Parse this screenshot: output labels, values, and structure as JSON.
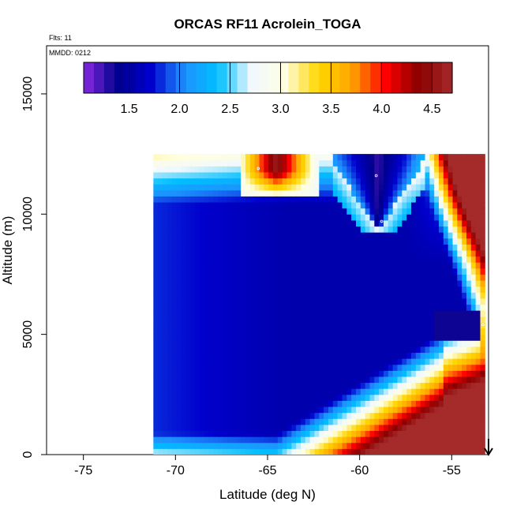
{
  "chart_data": {
    "type": "heatmap",
    "title": "ORCAS RF11 Acrolein_TOGA",
    "annotations": {
      "flights": "Flts: 11",
      "date": "MMDD: 0212"
    },
    "xlabel": "Latitude (deg N)",
    "ylabel": "Altitude (m)",
    "xlim": [
      -77,
      -53
    ],
    "ylim": [
      0,
      17000
    ],
    "xticks": [
      -75,
      -70,
      -65,
      -60,
      -55
    ],
    "xtick_labels": [
      "-75",
      "-70",
      "-65",
      "-60",
      "-55"
    ],
    "yticks": [
      0,
      5000,
      10000,
      15000
    ],
    "ytick_labels": [
      "0",
      "5000",
      "10000",
      "15000"
    ],
    "colorbar": {
      "range": [
        1.05,
        4.7
      ],
      "ticks": [
        1.5,
        2.0,
        2.5,
        3.0,
        3.5,
        4.0,
        4.5
      ],
      "tick_labels": [
        "1.5",
        "2.0",
        "2.5",
        "3.0",
        "3.5",
        "4.0",
        "4.5"
      ],
      "colors": [
        "#8a2be2",
        "#00008b",
        "#0000cd",
        "#1e90ff",
        "#00bfff",
        "#f0f8ff",
        "#ffffe0",
        "#ffd700",
        "#ffa500",
        "#ff0000",
        "#8b0000",
        "#a52a2a"
      ]
    },
    "values_description_free": true,
    "flight_track_points": [
      {
        "lat": -71.1,
        "alt": 11900
      },
      {
        "lat": -65.5,
        "alt": 11900
      },
      {
        "lat": -59.1,
        "alt": 11600
      },
      {
        "lat": -58.8,
        "alt": 9700
      },
      {
        "lat": -53.3,
        "alt": 5400
      },
      {
        "lat": -71.3,
        "alt": 150
      }
    ],
    "region_values": [
      {
        "lat_min": -71,
        "lat_max": -61.3,
        "alt_min": 0,
        "alt_max": 11900,
        "value": 1.6
      },
      {
        "lat_min": -66.5,
        "lat_max": -62.5,
        "alt_min": 11000,
        "alt_max": 12000,
        "value": 4.4
      },
      {
        "lat_min": -60,
        "lat_max": -58.5,
        "alt_min": 9500,
        "alt_max": 11700,
        "value": 1.3
      },
      {
        "lat_min": -56,
        "lat_max": -53.5,
        "alt_min": 4700,
        "alt_max": 6200,
        "value": 1.4
      }
    ],
    "arrow": {
      "lat": -53,
      "direction": "down"
    }
  }
}
